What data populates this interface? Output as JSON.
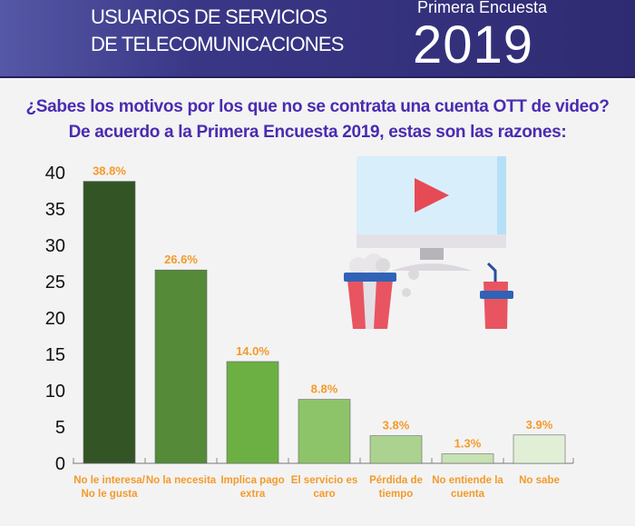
{
  "header": {
    "title_line1": "USUARIOS DE SERVICIOS",
    "title_line2": "DE TELECOMUNICACIONES",
    "survey": "Primera Encuesta",
    "year": "2019"
  },
  "question": {
    "line1": "¿Sabes los motivos por los que no se contrata una cuenta OTT de video?",
    "line2": "De acuerdo a la Primera Encuesta 2019, estas son las razones:"
  },
  "chart_data": {
    "type": "bar",
    "title": "¿Sabes los motivos por los que no se contrata una cuenta OTT de video?",
    "categories": [
      "No le interesa/ No le gusta",
      "No la necesita",
      "Implica pago extra",
      "El servicio es caro",
      "Pérdida de tiempo",
      "No entiende la cuenta",
      "No sabe"
    ],
    "values": [
      38.8,
      26.6,
      14.0,
      8.8,
      3.8,
      1.3,
      3.9
    ],
    "value_labels": [
      "38.8%",
      "26.6%",
      "14.0%",
      "8.8%",
      "3.8%",
      "1.3%",
      "3.9%"
    ],
    "colors": [
      "#335526",
      "#548a38",
      "#6cb044",
      "#8dc46a",
      "#abd38f",
      "#c7e2b3",
      "#e1efd6"
    ],
    "yticks": [
      0,
      5,
      10,
      15,
      20,
      25,
      30,
      35,
      40
    ],
    "ylim": [
      0,
      40
    ],
    "xlabel": "",
    "ylabel": "",
    "grid": false
  },
  "colors": {
    "label": "#f39a2b",
    "question": "#4b2bb0",
    "header": "#2f2b72"
  }
}
